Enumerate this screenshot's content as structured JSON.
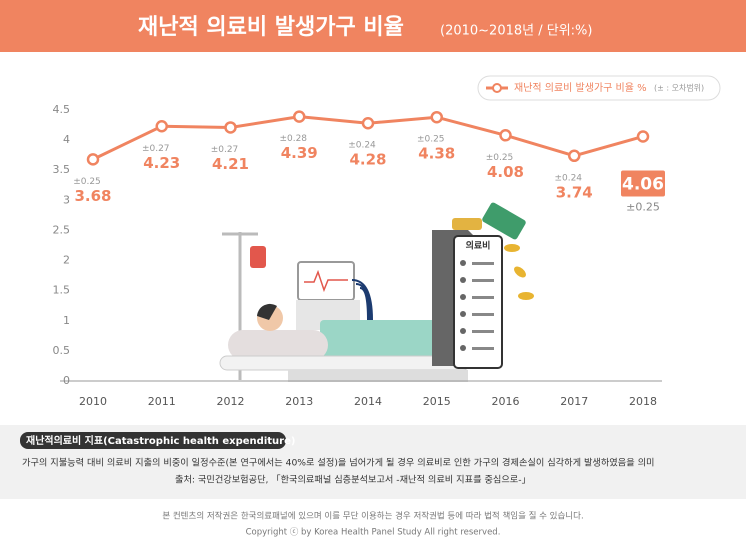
{
  "chart_data": {
    "type": "line",
    "title": "재난적 의료비 발생가구 비율",
    "subtitle": "(2010~2018년 / 단위:%)",
    "categories": [
      "2010",
      "2011",
      "2012",
      "2013",
      "2014",
      "2015",
      "2016",
      "2017",
      "2018"
    ],
    "series": [
      {
        "name": "재난적 의료비 발생가구 비율 %",
        "color": "#f08460",
        "values": [
          3.68,
          4.23,
          4.21,
          4.39,
          4.28,
          4.38,
          4.08,
          3.74,
          4.06
        ],
        "error_labels": [
          "±0.25",
          "±0.27",
          "±0.27",
          "±0.28",
          "±0.24",
          "±0.25",
          "±0.25",
          "±0.24",
          "±0.25"
        ]
      }
    ],
    "legend_note": "(± : 오차범위)",
    "ylim": [
      0,
      4.5
    ],
    "yticks": [
      0,
      0.5,
      1,
      1.5,
      2,
      2.5,
      3,
      3.5,
      4,
      4.5
    ],
    "grid": false,
    "legend": "top-right"
  },
  "illustration": {
    "label": "의료비"
  },
  "note": {
    "heading": "재난적의료비 지표(Catastrophic health expenditure)",
    "lines": [
      "가구의 지불능력 대비 의료비 지출의 비중이 일정수준(본 연구에서는 40%로 설정)을 넘어가게 될 경우 의료비로 인한 가구의 경제손실이 심각하게 발생하였음을 의미",
      "출처: 국민건강보험공단, 「한국의료패널 심층분석보고서 -재난적 의료비 지표를 중심으로-」"
    ]
  },
  "footer": [
    "본 컨텐츠의 저작권은 한국의료패널에 있으며 이를 무단 이용하는 경우 저작권법 등에 따라 법적 책임을 질 수 있습니다.",
    "Copyright ⓒ by Korea Health Panel Study All right reserved."
  ]
}
